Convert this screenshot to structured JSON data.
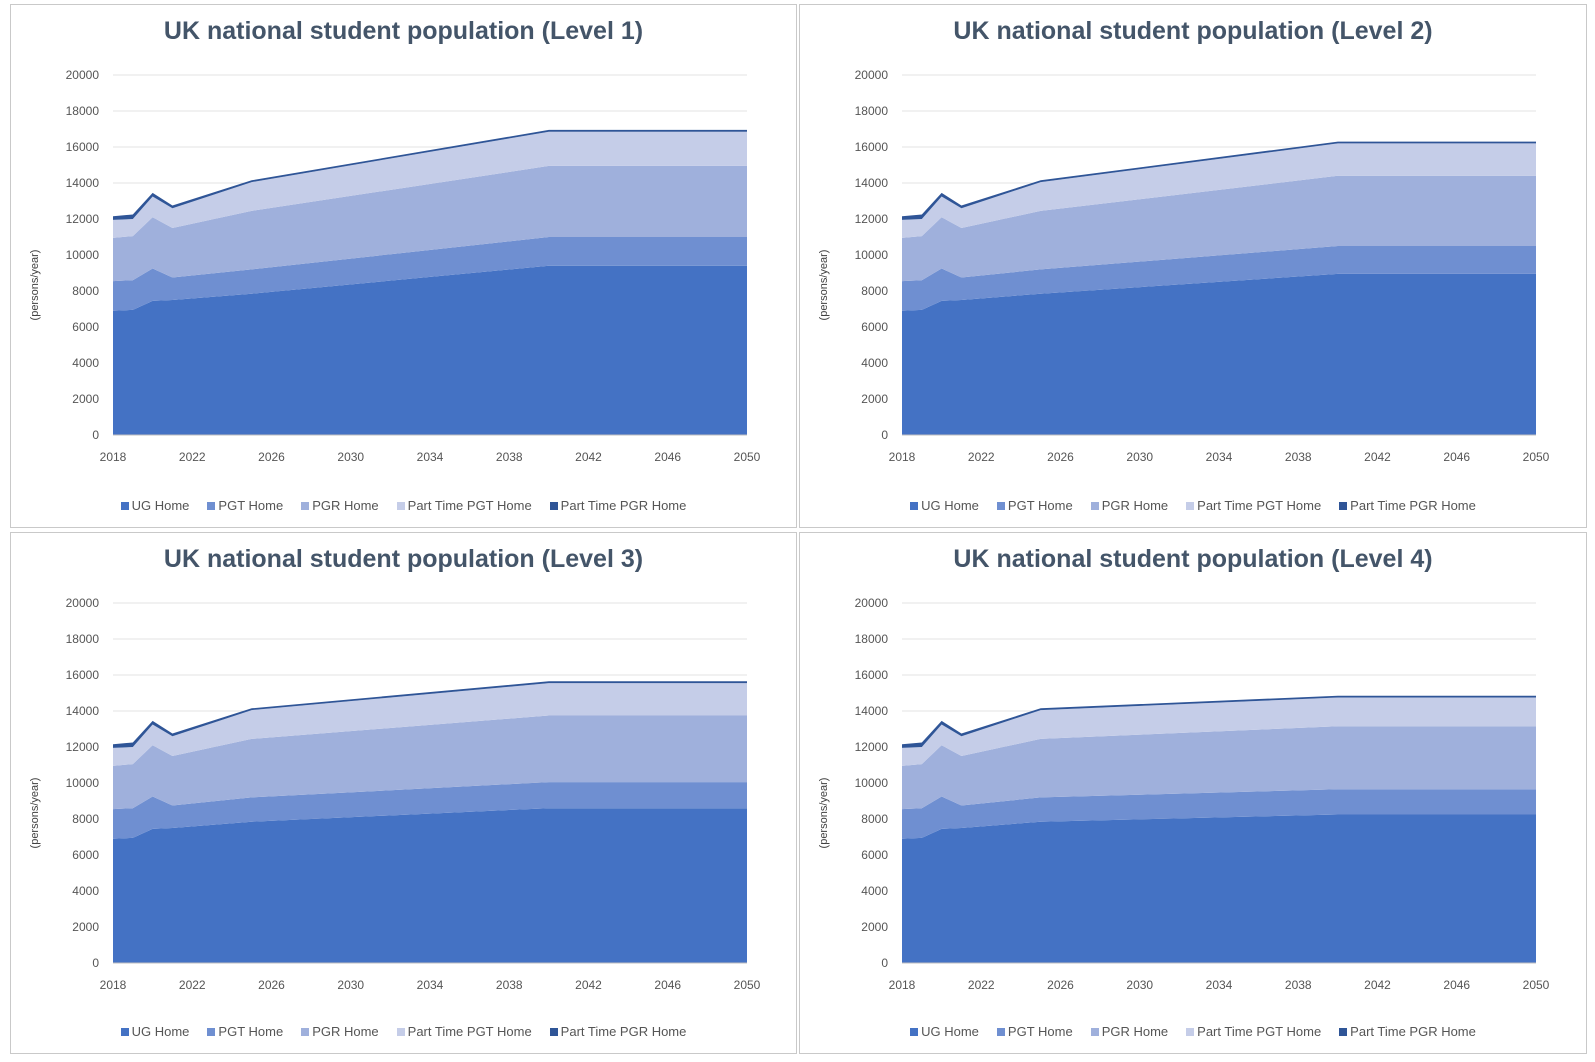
{
  "colors": {
    "ug": "#4472c4",
    "pgt": "#6f8fd1",
    "pgr": "#9fb0dc",
    "pt_pgt": "#c5cde8",
    "pt_pgr": "#2f5597",
    "grid": "#e3e3e3",
    "title": "#445569"
  },
  "chart_data": [
    {
      "type": "area",
      "stacked": true,
      "title": "UK national student population (Level 1)",
      "ylabel": "(persons/year)",
      "xlabel": "",
      "ylim": [
        0,
        20000
      ],
      "yticks": [
        "0",
        "2000",
        "4000",
        "6000",
        "8000",
        "10000",
        "12000",
        "14000",
        "16000",
        "18000",
        "20000"
      ],
      "xlim": [
        2018,
        2050
      ],
      "xticks": [
        "2018",
        "2022",
        "2026",
        "2030",
        "2034",
        "2038",
        "2042",
        "2046",
        "2050"
      ],
      "x": [
        2018,
        2019,
        2020,
        2021,
        2025,
        2040,
        2050
      ],
      "series": [
        {
          "name": "UG Home",
          "values": [
            6900,
            6950,
            7450,
            7500,
            7850,
            9400,
            9400
          ]
        },
        {
          "name": "PGT Home",
          "values": [
            1650,
            1650,
            1800,
            1250,
            1350,
            1600,
            1600
          ]
        },
        {
          "name": "PGR Home",
          "values": [
            2400,
            2450,
            2850,
            2750,
            3250,
            3950,
            3950
          ]
        },
        {
          "name": "Part Time PGT Home",
          "values": [
            1000,
            950,
            1150,
            1100,
            1600,
            1900,
            1900
          ]
        },
        {
          "name": "Part Time PGR Home",
          "values": [
            200,
            250,
            200,
            150,
            100,
            100,
            100
          ]
        }
      ]
    },
    {
      "type": "area",
      "stacked": true,
      "title": "UK national student population (Level 2)",
      "ylabel": "(persons/year)",
      "xlabel": "",
      "ylim": [
        0,
        20000
      ],
      "yticks": [
        "0",
        "2000",
        "4000",
        "6000",
        "8000",
        "10000",
        "12000",
        "14000",
        "16000",
        "18000",
        "20000"
      ],
      "xlim": [
        2018,
        2050
      ],
      "xticks": [
        "2018",
        "2022",
        "2026",
        "2030",
        "2034",
        "2038",
        "2042",
        "2046",
        "2050"
      ],
      "x": [
        2018,
        2019,
        2020,
        2021,
        2025,
        2040,
        2050
      ],
      "series": [
        {
          "name": "UG Home",
          "values": [
            6900,
            6950,
            7450,
            7500,
            7850,
            8950,
            8950
          ]
        },
        {
          "name": "PGT Home",
          "values": [
            1650,
            1650,
            1800,
            1250,
            1350,
            1550,
            1550
          ]
        },
        {
          "name": "PGR Home",
          "values": [
            2400,
            2450,
            2850,
            2750,
            3250,
            3900,
            3900
          ]
        },
        {
          "name": "Part Time PGT Home",
          "values": [
            1000,
            950,
            1150,
            1100,
            1600,
            1800,
            1800
          ]
        },
        {
          "name": "Part Time PGR Home",
          "values": [
            200,
            250,
            200,
            150,
            100,
            100,
            100
          ]
        }
      ]
    },
    {
      "type": "area",
      "stacked": true,
      "title": "UK national student population (Level 3)",
      "ylabel": "(persons/year)",
      "xlabel": "",
      "ylim": [
        0,
        20000
      ],
      "yticks": [
        "0",
        "2000",
        "4000",
        "6000",
        "8000",
        "10000",
        "12000",
        "14000",
        "16000",
        "18000",
        "20000"
      ],
      "xlim": [
        2018,
        2050
      ],
      "xticks": [
        "2018",
        "2022",
        "2026",
        "2030",
        "2034",
        "2038",
        "2042",
        "2046",
        "2050"
      ],
      "x": [
        2018,
        2019,
        2020,
        2021,
        2025,
        2040,
        2050
      ],
      "series": [
        {
          "name": "UG Home",
          "values": [
            6900,
            6950,
            7450,
            7500,
            7850,
            8600,
            8600
          ]
        },
        {
          "name": "PGT Home",
          "values": [
            1650,
            1650,
            1800,
            1250,
            1350,
            1450,
            1450
          ]
        },
        {
          "name": "PGR Home",
          "values": [
            2400,
            2450,
            2850,
            2750,
            3250,
            3700,
            3700
          ]
        },
        {
          "name": "Part Time PGT Home",
          "values": [
            1000,
            950,
            1150,
            1100,
            1600,
            1800,
            1800
          ]
        },
        {
          "name": "Part Time PGR Home",
          "values": [
            200,
            250,
            200,
            150,
            100,
            100,
            100
          ]
        }
      ]
    },
    {
      "type": "area",
      "stacked": true,
      "title": "UK national student population (Level 4)",
      "ylabel": "(persons/year)",
      "xlabel": "",
      "ylim": [
        0,
        20000
      ],
      "yticks": [
        "0",
        "2000",
        "4000",
        "6000",
        "8000",
        "10000",
        "12000",
        "14000",
        "16000",
        "18000",
        "20000"
      ],
      "xlim": [
        2018,
        2050
      ],
      "xticks": [
        "2018",
        "2022",
        "2026",
        "2030",
        "2034",
        "2038",
        "2042",
        "2046",
        "2050"
      ],
      "x": [
        2018,
        2019,
        2020,
        2021,
        2025,
        2040,
        2050
      ],
      "series": [
        {
          "name": "UG Home",
          "values": [
            6900,
            6950,
            7450,
            7500,
            7850,
            8250,
            8250
          ]
        },
        {
          "name": "PGT Home",
          "values": [
            1650,
            1650,
            1800,
            1250,
            1350,
            1400,
            1400
          ]
        },
        {
          "name": "PGR Home",
          "values": [
            2400,
            2450,
            2850,
            2750,
            3250,
            3500,
            3500
          ]
        },
        {
          "name": "Part Time PGT Home",
          "values": [
            1000,
            950,
            1150,
            1100,
            1600,
            1600,
            1600
          ]
        },
        {
          "name": "Part Time PGR Home",
          "values": [
            200,
            250,
            200,
            150,
            100,
            100,
            100
          ]
        }
      ]
    }
  ]
}
